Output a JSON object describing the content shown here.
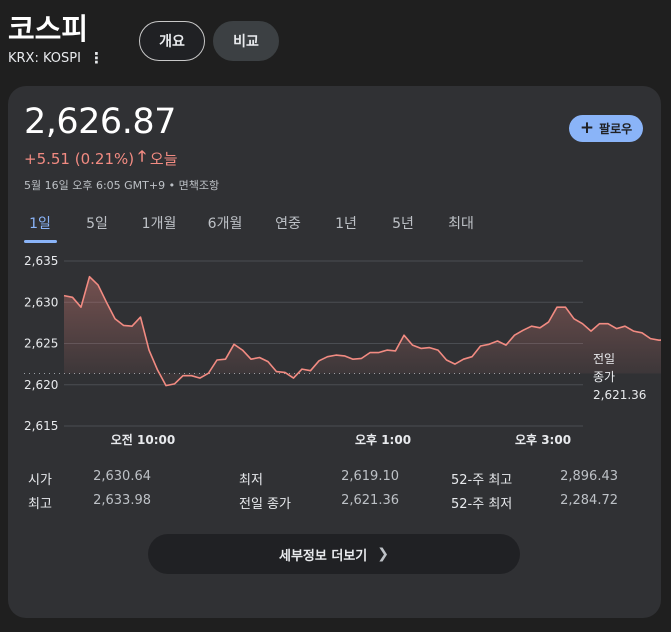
{
  "header": {
    "title": "코스피",
    "ticker": "KRX: KOSPI",
    "tabs": [
      "개요",
      "비교"
    ]
  },
  "quote": {
    "price": "2,626.87",
    "change": "+5.51 (0.21%)",
    "change_period": "오늘",
    "timestamp": "5월 16일 오후 6:05 GMT+9 • 면책조항",
    "follow_label": "팔로우"
  },
  "ranges": [
    "1일",
    "5일",
    "1개월",
    "6개월",
    "연중",
    "1년",
    "5년",
    "최대"
  ],
  "active_range": "1일",
  "colors": {
    "accent": "#8ab4f8",
    "up": "#f28b82",
    "card": "#303134"
  },
  "chart_data": {
    "type": "line",
    "y_ticks": [
      "2,635",
      "2,630",
      "2,625",
      "2,620",
      "2,615"
    ],
    "ylim": [
      2615,
      2635
    ],
    "x_ticks": [
      "오전 10:00",
      "오후 1:00",
      "오후 3:00"
    ],
    "prev_close_label_1": "전일",
    "prev_close_label_2": "종가",
    "prev_close_value": "2,621.36",
    "prev_close": 2621.36,
    "series": [
      {
        "values": [
          2630.8,
          2630.6,
          2629.4,
          2633.1,
          2632.1,
          2630.0,
          2628.0,
          2627.2,
          2627.1,
          2628.2,
          2624.2,
          2621.8,
          2619.9,
          2620.1,
          2621.1,
          2621.1,
          2620.8,
          2621.4,
          2623.0,
          2623.1,
          2624.9,
          2624.2,
          2623.1,
          2623.3,
          2622.8,
          2621.6,
          2621.5,
          2620.8,
          2621.9,
          2621.7,
          2622.9,
          2623.4,
          2623.6,
          2623.5,
          2623.1,
          2623.2,
          2623.9,
          2623.9,
          2624.2,
          2624.1,
          2626.0,
          2624.8,
          2624.4,
          2624.5,
          2624.2,
          2623.0,
          2622.5,
          2623.1,
          2623.4,
          2624.7,
          2624.9,
          2625.3,
          2624.8,
          2626.0,
          2626.6,
          2627.1,
          2626.9,
          2627.6,
          2629.4,
          2629.4,
          2628.0,
          2627.4,
          2626.5,
          2627.4,
          2627.4,
          2626.8,
          2627.1,
          2626.5,
          2626.3,
          2625.6,
          2625.4,
          2625.5,
          2624.9,
          2625.5,
          2624.6,
          2625.1,
          2624.4,
          2624.7,
          2625.0,
          2625.4,
          2626.1,
          2626.1,
          2626.3
        ]
      }
    ]
  },
  "stats": [
    {
      "label": "시가",
      "value": "2,630.64"
    },
    {
      "label": "최저",
      "value": "2,619.10"
    },
    {
      "label": "52-주 최고",
      "value": "2,896.43"
    },
    {
      "label": "최고",
      "value": "2,633.98"
    },
    {
      "label": "전일 종가",
      "value": "2,621.36"
    },
    {
      "label": "52-주 최저",
      "value": "2,284.72"
    }
  ],
  "more_details_label": "세부정보 더보기"
}
